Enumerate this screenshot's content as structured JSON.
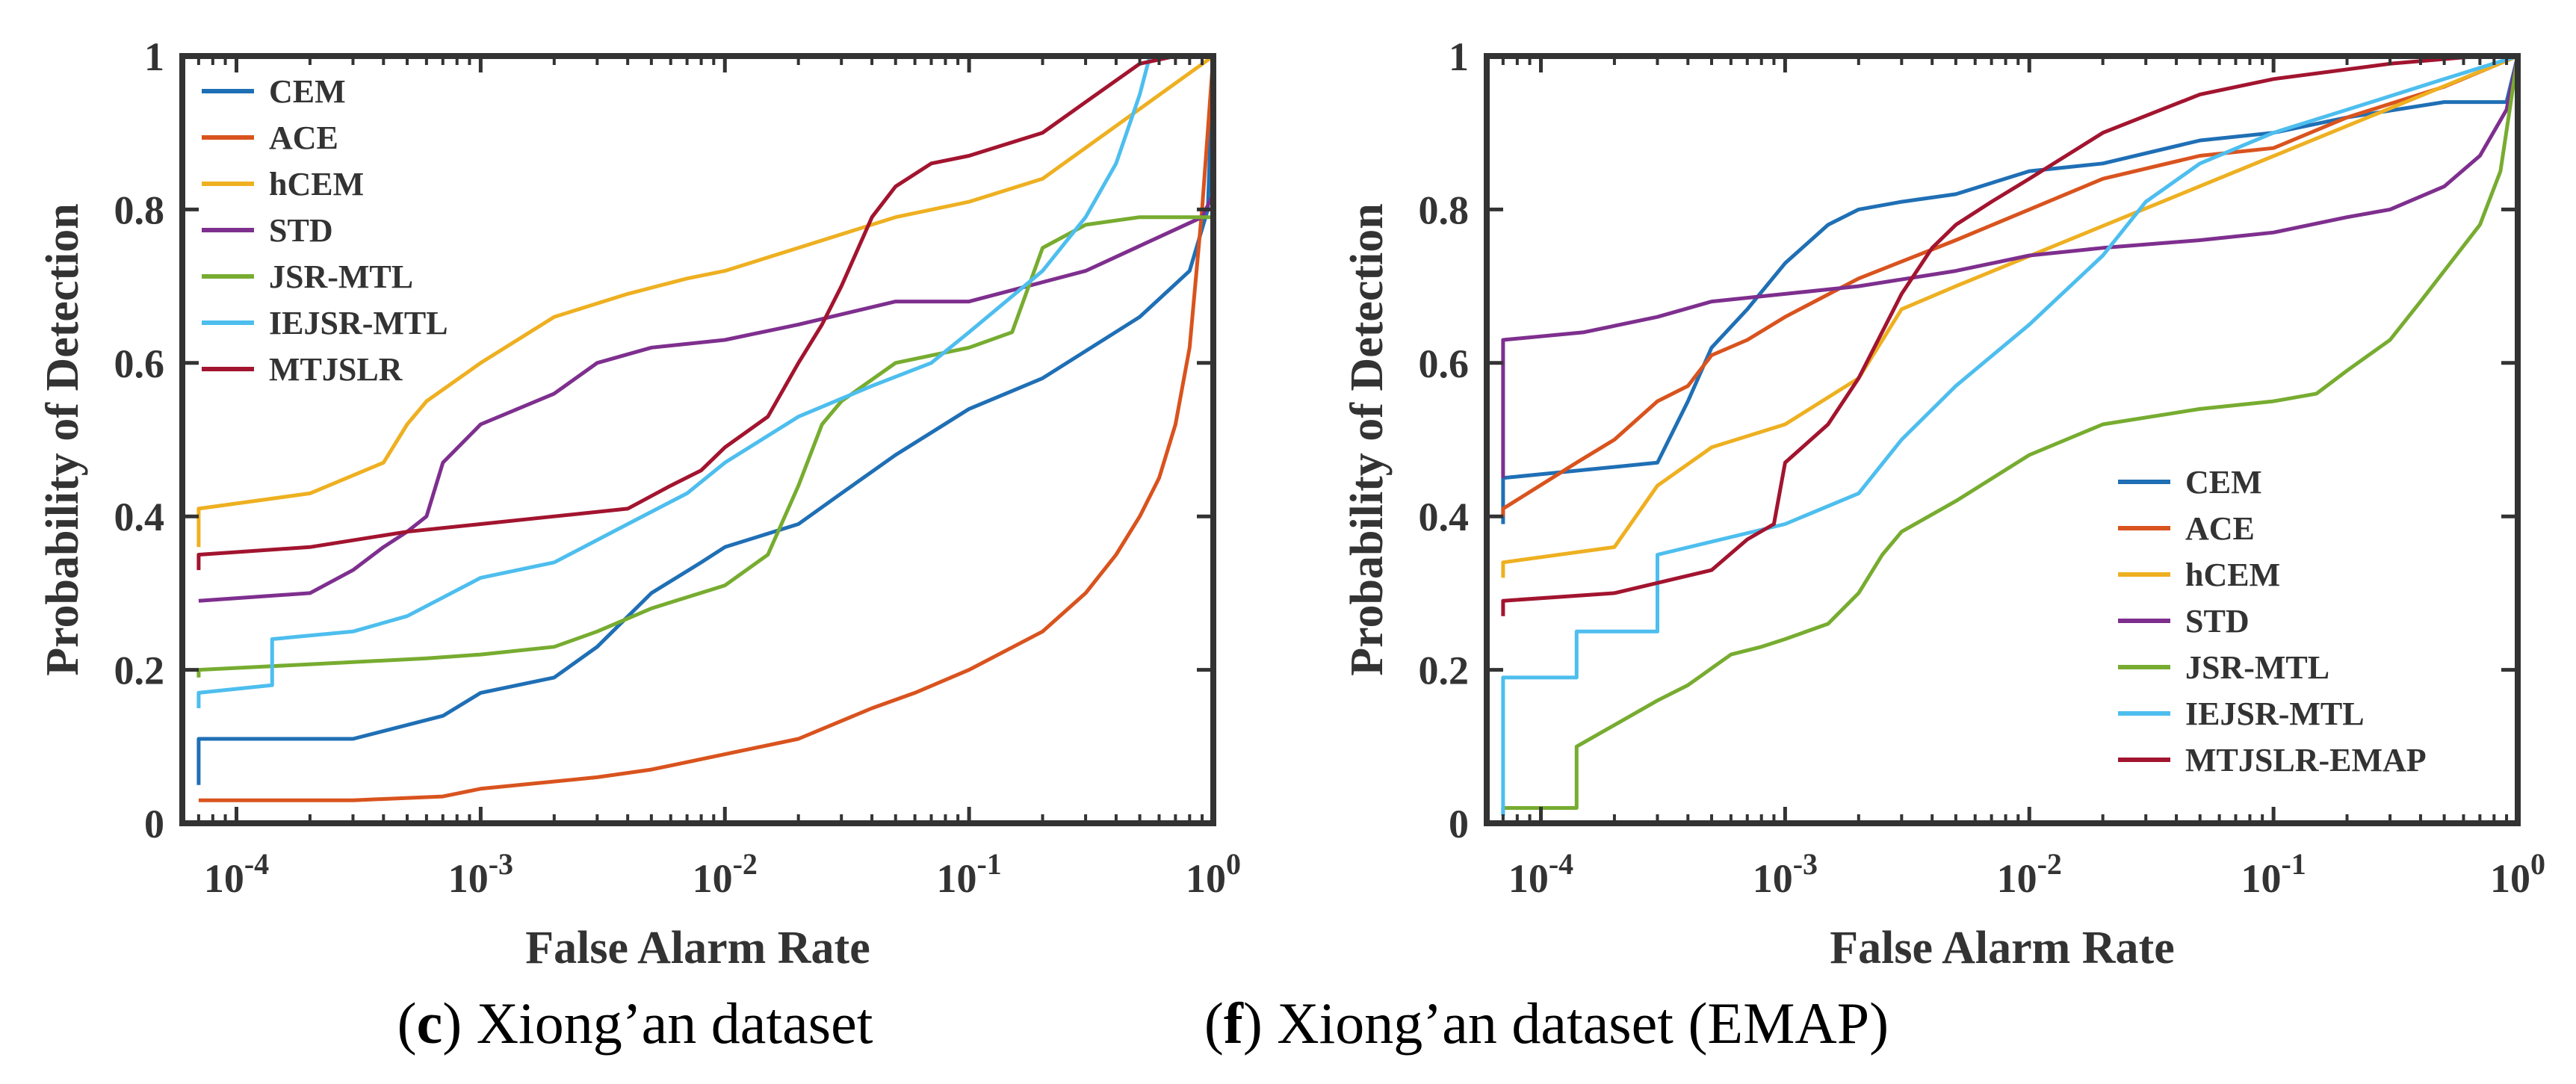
{
  "colors": {
    "CEM": "#1f6fb5",
    "ACE": "#d9531e",
    "hCEM": "#eeb021",
    "STD": "#7e2f8e",
    "JSR-MTL": "#77ac30",
    "IEJSR-MTL": "#4dbeee",
    "MTJSLR": "#a2142f",
    "axis": "#333333"
  },
  "chart_data": [
    {
      "type": "line",
      "panel": "c",
      "caption_letter": "c",
      "caption_text": " Xiong’an dataset",
      "xlabel": "False Alarm Rate",
      "ylabel": "Probability of Detection",
      "xscale": "log",
      "xlim": [
        6e-05,
        1
      ],
      "ylim": [
        0,
        1
      ],
      "xticks": [
        0.0001,
        0.001,
        0.01,
        0.1,
        1
      ],
      "xtick_labels": [
        {
          "base": "10",
          "exp": "-4"
        },
        {
          "base": "10",
          "exp": "-3"
        },
        {
          "base": "10",
          "exp": "-2"
        },
        {
          "base": "10",
          "exp": "-1"
        },
        {
          "base": "10",
          "exp": "0"
        }
      ],
      "yticks": [
        0,
        0.2,
        0.4,
        0.6,
        0.8,
        1
      ],
      "ytick_labels": [
        "0",
        "0.2",
        "0.4",
        "0.6",
        "0.8",
        "1"
      ],
      "legend_position": "top-left",
      "series": [
        {
          "name": "CEM",
          "x": [
            7e-05,
            7e-05,
            0.0003,
            0.0007,
            0.001,
            0.002,
            0.003,
            0.005,
            0.008,
            0.01,
            0.02,
            0.03,
            0.05,
            0.1,
            0.2,
            0.5,
            0.8,
            0.95,
            1.0
          ],
          "y": [
            0.05,
            0.11,
            0.11,
            0.14,
            0.17,
            0.19,
            0.23,
            0.3,
            0.34,
            0.36,
            0.39,
            0.43,
            0.48,
            0.54,
            0.58,
            0.66,
            0.72,
            0.8,
            1.0
          ]
        },
        {
          "name": "ACE",
          "x": [
            7e-05,
            0.0003,
            0.0007,
            0.001,
            0.003,
            0.005,
            0.01,
            0.02,
            0.04,
            0.06,
            0.1,
            0.2,
            0.3,
            0.4,
            0.5,
            0.6,
            0.7,
            0.8,
            0.9,
            1.0
          ],
          "y": [
            0.03,
            0.03,
            0.035,
            0.045,
            0.06,
            0.07,
            0.09,
            0.11,
            0.15,
            0.17,
            0.2,
            0.25,
            0.3,
            0.35,
            0.4,
            0.45,
            0.52,
            0.62,
            0.8,
            1.0
          ]
        },
        {
          "name": "hCEM",
          "x": [
            7e-05,
            7e-05,
            0.0002,
            0.0004,
            0.0005,
            0.0006,
            0.001,
            0.002,
            0.004,
            0.007,
            0.01,
            0.02,
            0.05,
            0.1,
            0.2,
            1.0
          ],
          "y": [
            0.36,
            0.41,
            0.43,
            0.47,
            0.52,
            0.55,
            0.6,
            0.66,
            0.69,
            0.71,
            0.72,
            0.75,
            0.79,
            0.81,
            0.84,
            1.0
          ]
        },
        {
          "name": "STD",
          "x": [
            7e-05,
            0.0002,
            0.0003,
            0.0004,
            0.0005,
            0.0006,
            0.0007,
            0.001,
            0.002,
            0.003,
            0.005,
            0.01,
            0.02,
            0.05,
            0.1,
            0.3,
            0.9,
            1.0
          ],
          "y": [
            0.29,
            0.3,
            0.33,
            0.36,
            0.38,
            0.4,
            0.47,
            0.52,
            0.56,
            0.6,
            0.62,
            0.63,
            0.65,
            0.68,
            0.68,
            0.72,
            0.79,
            0.82
          ]
        },
        {
          "name": "JSR-MTL",
          "x": [
            7e-05,
            7e-05,
            0.0003,
            0.0006,
            0.001,
            0.002,
            0.003,
            0.005,
            0.01,
            0.015,
            0.02,
            0.025,
            0.03,
            0.05,
            0.1,
            0.15,
            0.2,
            0.3,
            0.5,
            0.9,
            1.0
          ],
          "y": [
            0.19,
            0.2,
            0.21,
            0.215,
            0.22,
            0.23,
            0.25,
            0.28,
            0.31,
            0.35,
            0.44,
            0.52,
            0.55,
            0.6,
            0.62,
            0.64,
            0.75,
            0.78,
            0.79,
            0.79,
            0.79
          ]
        },
        {
          "name": "IEJSR-MTL",
          "x": [
            7e-05,
            7e-05,
            0.00014,
            0.00014,
            0.0003,
            0.0005,
            0.001,
            0.002,
            0.004,
            0.007,
            0.01,
            0.02,
            0.04,
            0.07,
            0.1,
            0.2,
            0.3,
            0.4,
            0.5,
            0.55,
            0.6,
            0.7,
            1.0
          ],
          "y": [
            0.15,
            0.17,
            0.18,
            0.24,
            0.25,
            0.27,
            0.32,
            0.34,
            0.39,
            0.43,
            0.47,
            0.53,
            0.57,
            0.6,
            0.64,
            0.72,
            0.79,
            0.86,
            0.95,
            1.0,
            1.0,
            1.0,
            1.0
          ]
        },
        {
          "name": "MTJSLR",
          "x": [
            7e-05,
            7e-05,
            0.0002,
            0.0005,
            0.001,
            0.002,
            0.004,
            0.006,
            0.008,
            0.01,
            0.015,
            0.02,
            0.025,
            0.03,
            0.04,
            0.05,
            0.07,
            0.1,
            0.2,
            0.3,
            0.5,
            0.7,
            1.0
          ],
          "y": [
            0.33,
            0.35,
            0.36,
            0.38,
            0.39,
            0.4,
            0.41,
            0.44,
            0.46,
            0.49,
            0.53,
            0.6,
            0.65,
            0.7,
            0.79,
            0.83,
            0.86,
            0.87,
            0.9,
            0.94,
            0.99,
            1.0,
            1.0
          ]
        }
      ]
    },
    {
      "type": "line",
      "panel": "f",
      "caption_letter": "f",
      "caption_text": " Xiong’an dataset (EMAP)",
      "xlabel": "False Alarm Rate",
      "ylabel": "Probability of Detection",
      "xscale": "log",
      "xlim": [
        6e-05,
        1
      ],
      "ylim": [
        0,
        1
      ],
      "xticks": [
        0.0001,
        0.001,
        0.01,
        0.1,
        1
      ],
      "xtick_labels": [
        {
          "base": "10",
          "exp": "-4"
        },
        {
          "base": "10",
          "exp": "-3"
        },
        {
          "base": "10",
          "exp": "-2"
        },
        {
          "base": "10",
          "exp": "-1"
        },
        {
          "base": "10",
          "exp": "0"
        }
      ],
      "yticks": [
        0,
        0.2,
        0.4,
        0.6,
        0.8,
        1
      ],
      "ytick_labels": [
        "0",
        "0.2",
        "0.4",
        "0.6",
        "0.8",
        "1"
      ],
      "legend_position": "bottom-right",
      "series": [
        {
          "name": "CEM",
          "x": [
            7e-05,
            7e-05,
            0.0003,
            0.0004,
            0.0005,
            0.0007,
            0.001,
            0.0015,
            0.002,
            0.003,
            0.005,
            0.01,
            0.02,
            0.05,
            0.1,
            0.2,
            0.5,
            0.9,
            1.0
          ],
          "y": [
            0.39,
            0.45,
            0.47,
            0.55,
            0.62,
            0.67,
            0.73,
            0.78,
            0.8,
            0.81,
            0.82,
            0.85,
            0.86,
            0.89,
            0.9,
            0.92,
            0.94,
            0.94,
            1.0
          ]
        },
        {
          "name": "ACE",
          "x": [
            7e-05,
            7e-05,
            0.00014,
            0.0002,
            0.0003,
            0.0004,
            0.0005,
            0.0007,
            0.001,
            0.002,
            0.005,
            0.01,
            0.02,
            0.05,
            0.1,
            0.2,
            0.5,
            1.0
          ],
          "y": [
            0.4,
            0.41,
            0.47,
            0.5,
            0.55,
            0.57,
            0.61,
            0.63,
            0.66,
            0.71,
            0.76,
            0.8,
            0.84,
            0.87,
            0.88,
            0.92,
            0.96,
            1.0
          ]
        },
        {
          "name": "hCEM",
          "x": [
            7e-05,
            7e-05,
            0.0002,
            0.0003,
            0.0005,
            0.001,
            0.002,
            0.003,
            0.005,
            1.0
          ],
          "y": [
            0.32,
            0.34,
            0.36,
            0.44,
            0.49,
            0.52,
            0.58,
            0.67,
            0.7,
            1.0
          ]
        },
        {
          "name": "STD",
          "x": [
            7e-05,
            7e-05,
            0.00015,
            0.0003,
            0.0005,
            0.001,
            0.002,
            0.005,
            0.01,
            0.02,
            0.05,
            0.1,
            0.2,
            0.3,
            0.5,
            0.7,
            0.9,
            1.0
          ],
          "y": [
            0.45,
            0.63,
            0.64,
            0.66,
            0.68,
            0.69,
            0.7,
            0.72,
            0.74,
            0.75,
            0.76,
            0.77,
            0.79,
            0.8,
            0.83,
            0.87,
            0.93,
            1.0
          ]
        },
        {
          "name": "JSR-MTL",
          "x": [
            7e-05,
            7e-05,
            0.00014,
            0.00014,
            0.0003,
            0.0004,
            0.0006,
            0.0008,
            0.001,
            0.0015,
            0.002,
            0.0025,
            0.003,
            0.005,
            0.01,
            0.02,
            0.05,
            0.1,
            0.15,
            0.2,
            0.3,
            0.4,
            0.5,
            0.7,
            0.85,
            1.0
          ],
          "y": [
            0.01,
            0.02,
            0.02,
            0.1,
            0.16,
            0.18,
            0.22,
            0.23,
            0.24,
            0.26,
            0.3,
            0.35,
            0.38,
            0.42,
            0.48,
            0.52,
            0.54,
            0.55,
            0.56,
            0.59,
            0.63,
            0.68,
            0.72,
            0.78,
            0.85,
            1.0
          ]
        },
        {
          "name": "IEJSR-MTL",
          "x": [
            7e-05,
            7e-05,
            0.00014,
            0.00014,
            0.0003,
            0.0003,
            0.001,
            0.002,
            0.003,
            0.005,
            0.01,
            0.02,
            0.03,
            0.05,
            0.1,
            0.2,
            0.5,
            1.0
          ],
          "y": [
            0.01,
            0.19,
            0.19,
            0.25,
            0.25,
            0.35,
            0.39,
            0.43,
            0.5,
            0.57,
            0.65,
            0.74,
            0.81,
            0.86,
            0.9,
            0.93,
            0.97,
            1.0
          ]
        },
        {
          "name": "MTJSLR-EMAP",
          "x": [
            7e-05,
            7e-05,
            0.0002,
            0.0005,
            0.0007,
            0.0009,
            0.001,
            0.0015,
            0.002,
            0.003,
            0.004,
            0.005,
            0.007,
            0.01,
            0.02,
            0.05,
            0.1,
            0.3,
            0.7,
            1.0
          ],
          "y": [
            0.27,
            0.29,
            0.3,
            0.33,
            0.37,
            0.39,
            0.47,
            0.52,
            0.58,
            0.69,
            0.75,
            0.78,
            0.81,
            0.84,
            0.9,
            0.95,
            0.97,
            0.99,
            1.0,
            1.0
          ]
        }
      ]
    }
  ]
}
